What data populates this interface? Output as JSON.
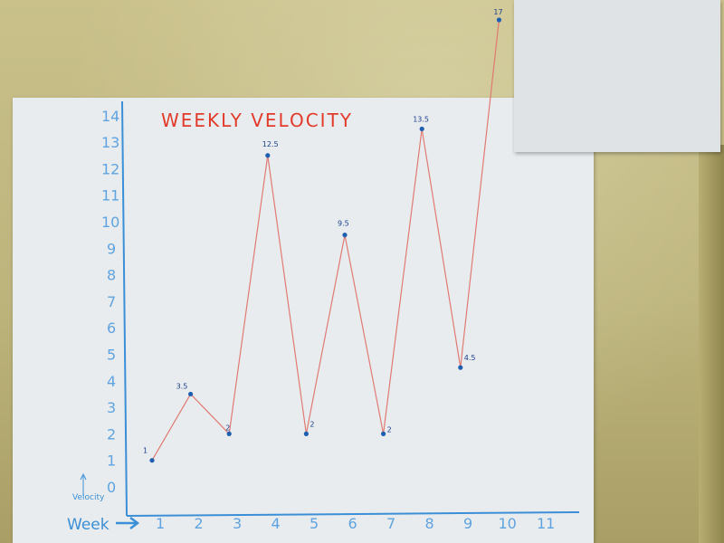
{
  "chart_data": {
    "type": "line",
    "title": "WEEKLY VELOCITY",
    "ylabel": "Velocity",
    "xlabel": "Week",
    "x": [
      1,
      2,
      3,
      4,
      5,
      6,
      7,
      8,
      9,
      10
    ],
    "y_ticks": [
      "0",
      "1",
      "2",
      "3",
      "4",
      "5",
      "6",
      "7",
      "8",
      "9",
      "10",
      "11",
      "12",
      "13",
      "14"
    ],
    "x_ticks": [
      "1",
      "2",
      "3",
      "4",
      "5",
      "6",
      "7",
      "8",
      "9",
      "10",
      "11"
    ],
    "ylim": [
      0,
      14
    ],
    "xlim": [
      0,
      11
    ],
    "series": [
      {
        "values": [
          1,
          3.5,
          2,
          12.5,
          2,
          9.5,
          2,
          13.5,
          4.5,
          17
        ]
      }
    ],
    "point_labels": [
      "1",
      "3.5",
      "2",
      "12.5",
      "2",
      "9.5",
      "2",
      "13.5",
      "4.5",
      "17"
    ],
    "grid": false,
    "colors": {
      "axis": "#3b8fd6",
      "line": "#e07a72",
      "point": "#1f5fb0",
      "title": "#e23a2a",
      "label": "#1a3f8f"
    }
  }
}
